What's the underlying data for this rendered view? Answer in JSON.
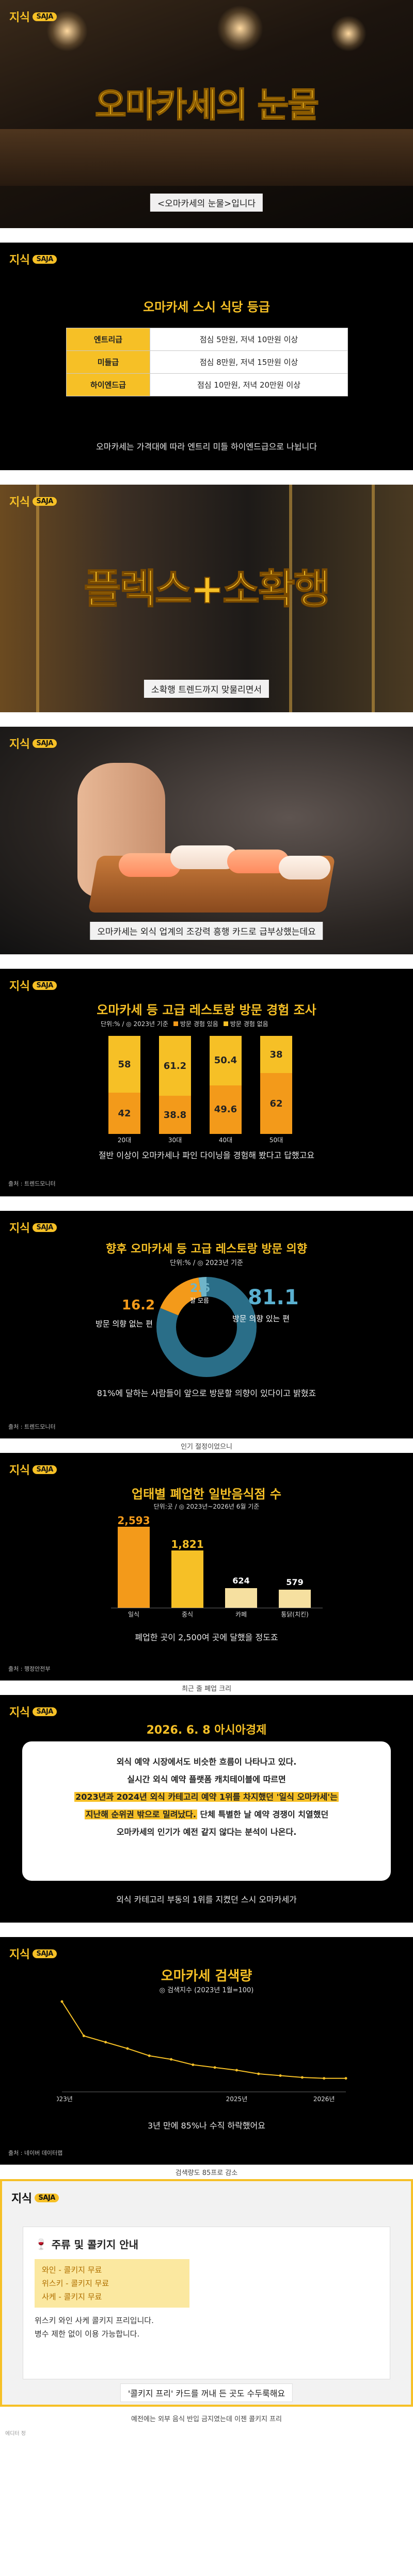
{
  "brand": {
    "logo_text": "지식",
    "logo_badge": "SAJA",
    "accent": "#f6c026"
  },
  "card1": {
    "title": "오마카세의 눈물",
    "caption": "<오마카세의 눈물>입니다"
  },
  "card2": {
    "title": "오마카세 스시 식당 등급",
    "grades": [
      {
        "grade": "엔트리급",
        "price": "점심 5만원, 저녁 10만원 이상"
      },
      {
        "grade": "미들급",
        "price": "점심 8만원, 저녁 15만원 이상"
      },
      {
        "grade": "하이엔드급",
        "price": "점심 10만원, 저녁 20만원 이상"
      }
    ],
    "footnote": "오마카세는 가격대에 따라 엔트리 미들 하이엔드급으로 나뉩니다"
  },
  "card3": {
    "title": "플렉스+소확행",
    "caption": "소확행 트렌드까지 맞물리면서"
  },
  "card4": {
    "caption": "오마카세는 외식 업계의 조강력 흥행 카드로 급부상했는데요"
  },
  "card5": {
    "title": "오마카세 등 고급 레스토랑 방문 경험 조사",
    "unit_note": "단위:% / ◎ 2023년 기준",
    "legend": [
      "방문 경험 있음",
      "방문 경험 없음"
    ],
    "footnote": "절반 이상이 오마카세나 파인 다이닝을 경험해 봤다고 답했고요",
    "source": "출처 : 트렌드모니터",
    "chart_data": {
      "type": "bar",
      "stacked": true,
      "categories": [
        "20대",
        "30대",
        "40대",
        "50대"
      ],
      "series": [
        {
          "name": "방문 경험 있음",
          "values": [
            42,
            38.8,
            49.6,
            62
          ],
          "color": "#f39a1a"
        },
        {
          "name": "방문 경험 없음",
          "values": [
            58,
            61.2,
            50.4,
            38
          ],
          "color": "#f6c026"
        }
      ],
      "ylim": [
        0,
        100
      ]
    }
  },
  "card6": {
    "title": "향후 오마카세 등 고급 레스토랑 방문 의향",
    "unit_note": "단위:% / ◎ 2023년 기준",
    "donut_labels": {
      "yes_value": "81.1",
      "yes_label": "방문 의향 있는 편",
      "no_value": "16.2",
      "no_label": "방문 의향 없는 편",
      "unsure_value": "2.6",
      "unsure_label": "잘 모름"
    },
    "footnote": "81%에 달하는 사람들이 앞으로 방문할 의향이 있다이고 밝혔죠",
    "source": "출처 : 트렌드모니터",
    "below_caption": "인기 절정이었으니",
    "chart_data": {
      "type": "pie",
      "donut": true,
      "categories": [
        "방문 의향 있는 편",
        "방문 의향 없는 편",
        "잘 모름"
      ],
      "values": [
        81.1,
        16.2,
        2.6
      ],
      "colors": [
        "#2a6e88",
        "#f39a1a",
        "#6fb4c8"
      ]
    }
  },
  "card7": {
    "title": "업태별 폐업한 일반음식점 수",
    "unit_note": "단위:곳 / ◎ 2023년~2026년 6월 기준",
    "footnote": "폐업한 곳이 2,500여 곳에 달했을 정도죠",
    "source": "출처 : 행정안전부",
    "below_caption": "최근 줄 폐업 크리",
    "chart_data": {
      "type": "bar",
      "categories": [
        "일식",
        "중식",
        "카페",
        "통닭(치킨)"
      ],
      "values": [
        2593,
        1821,
        624,
        579
      ],
      "value_labels": [
        "2,593",
        "1,821",
        "624",
        "579"
      ],
      "colors": [
        "#f39a1a",
        "#f6c026",
        "#f6e0a0",
        "#f6e0a0"
      ],
      "ylim": [
        0,
        2800
      ]
    }
  },
  "card8": {
    "date_title": "2026. 6. 8 아시아경제",
    "lines": [
      "외식 예약 시장에서도 비슷한 흐름이 나타나고 있다.",
      "실시간 외식 예약 플랫폼 캐치테이블에 따르면"
    ],
    "highlight_lines": [
      "2023년과 2024년 외식 카테고리 예약 1위를 차지했던 '일식 오마카세'는",
      "지난해 순위권 밖으로 밀려났다."
    ],
    "tail_line_a": " 단체 특별한 날 예약 경쟁이 치열했던",
    "tail_line_b": "오마카세의 인기가 예전 같지 않다는 분석이 나온다.",
    "footnote": "외식 카테고리 부동의 1위를 지켰던 스시 오마카세가"
  },
  "card9": {
    "title": "오마카세 검색량",
    "unit_note": "◎ 검색지수 (2023년 1월=100)",
    "footnote": "3년 만에 85%나 수직 하락했어요",
    "source": "출처 : 네이버 데이터랩",
    "below_caption": "검색량도 85프로 감소",
    "chart_data": {
      "type": "line",
      "xlabel": "",
      "ylabel": "",
      "x_ticks": [
        "2023년",
        "2025년",
        "2026년"
      ],
      "x": [
        "2023-01",
        "2023-04",
        "2023-07",
        "2023-10",
        "2024-01",
        "2024-04",
        "2024-07",
        "2024-10",
        "2025-01",
        "2025-04",
        "2025-07",
        "2025-10",
        "2026-01",
        "2026-04"
      ],
      "values": [
        100,
        62,
        55,
        48,
        40,
        36,
        30,
        27,
        24,
        20,
        18,
        16,
        15,
        15
      ],
      "color": "#f6c026"
    }
  },
  "card10": {
    "title": "주류 및 콜키지 안내",
    "items": [
      "와인 - 콜키지 무료",
      "위스키 - 콜키지 무료",
      "사케 - 콜키지 무료"
    ],
    "text_a": "위스키 와인 사케 콜키지 프리입니다.",
    "text_b": "병수 제한 없이 이용 가능합니다.",
    "footnote": "'콜키지 프리' 카드를 꺼내 든 곳도 수두룩해요",
    "below_caption": "예전에는 외부 음식 반입 금지였는데 이젠 콜키지 프리",
    "credit": "에디터 정"
  }
}
